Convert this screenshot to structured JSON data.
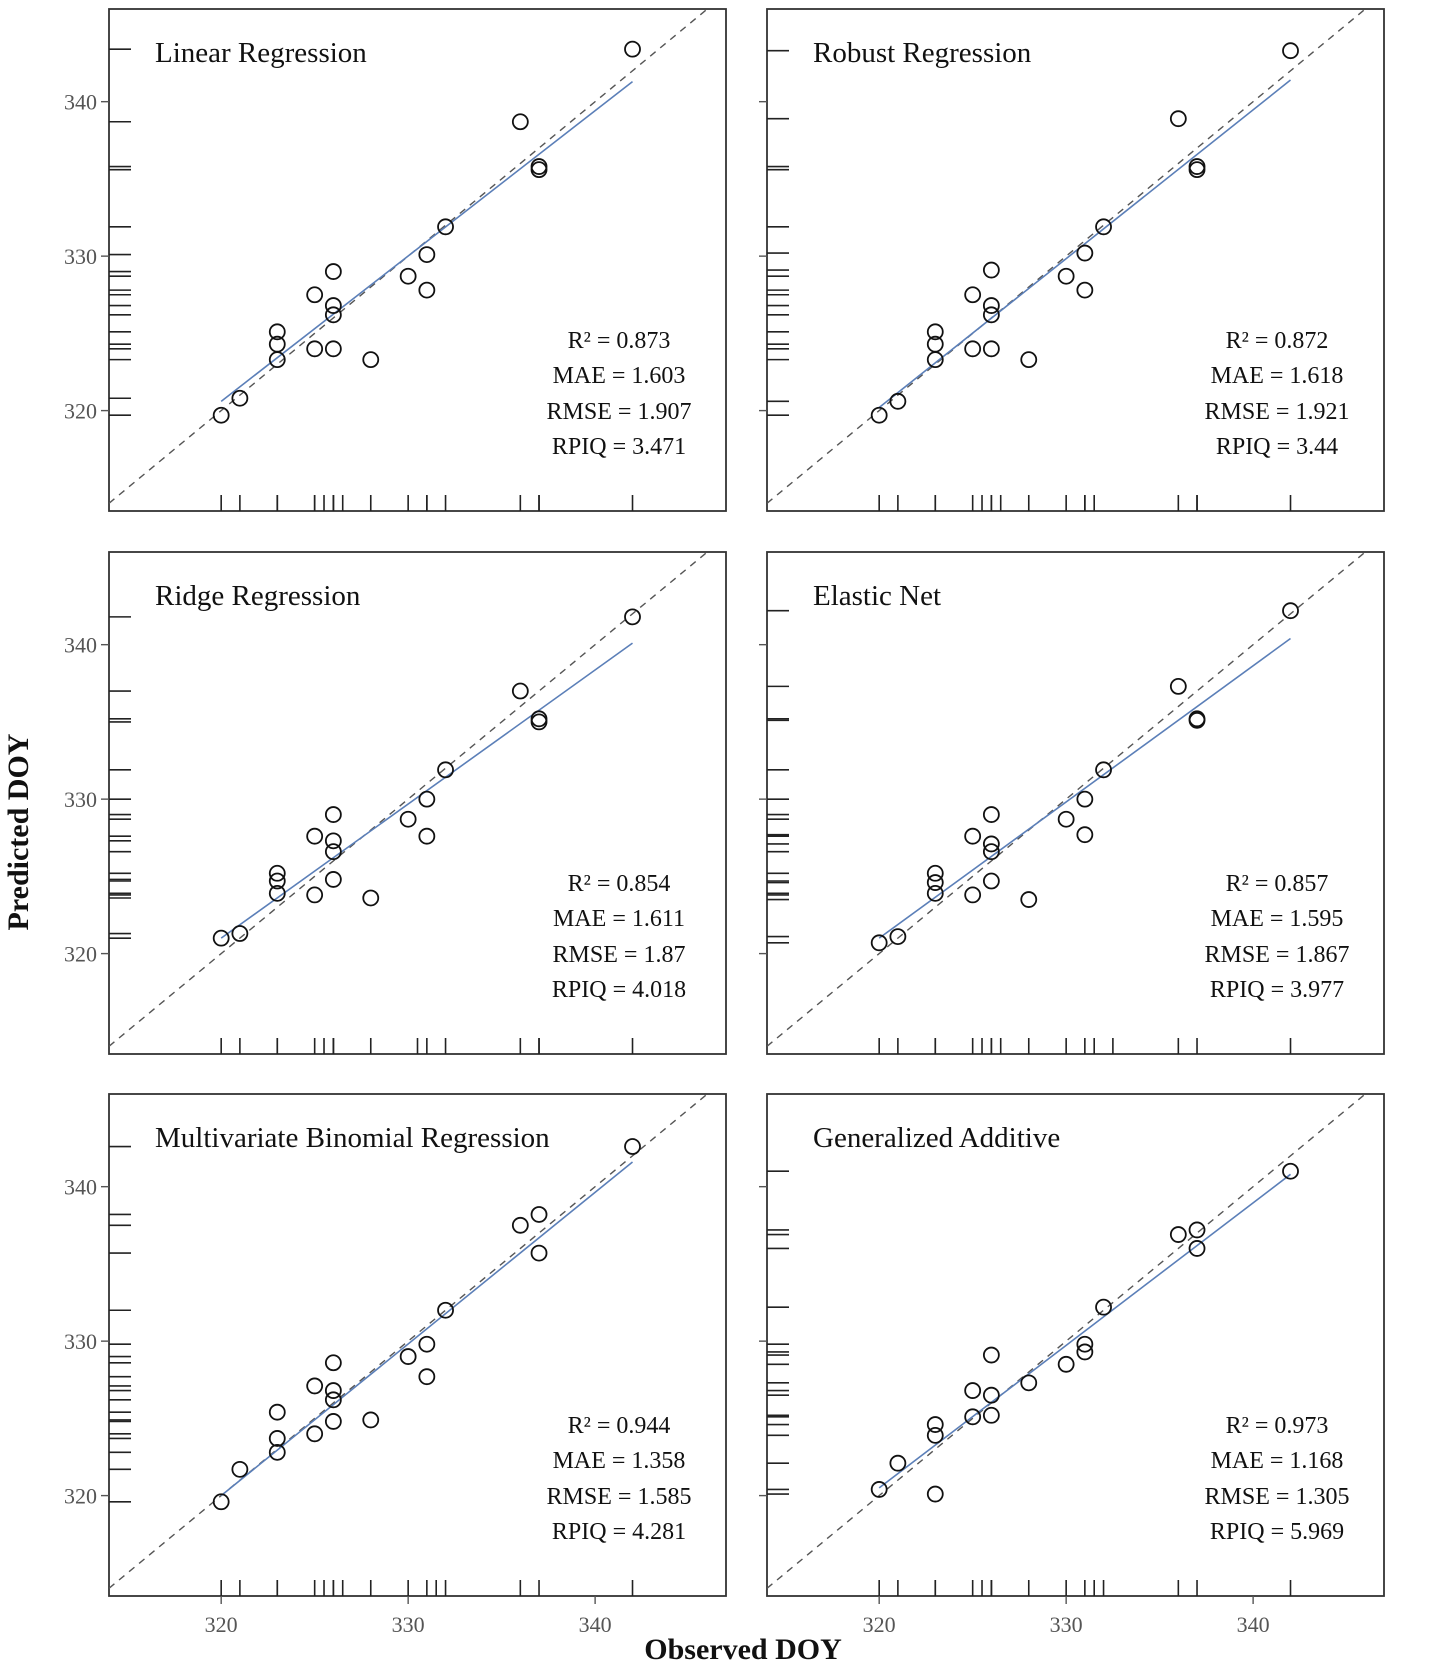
{
  "figure": {
    "xlabel": "Observed DOY",
    "ylabel": "Predicted DOY",
    "xlim": [
      314,
      347
    ],
    "ylim": [
      313.5,
      346
    ],
    "xticks": [
      320,
      330,
      340
    ],
    "yticks": [
      320,
      330,
      340
    ],
    "colors": {
      "fit_line": "#5b7fb8",
      "identity_line": "#555555",
      "points": "#111111",
      "frame": "#333333"
    }
  },
  "chart_data": [
    {
      "type": "scatter",
      "title": "Linear Regression",
      "stats": [
        "R² = 0.873",
        "MAE = 1.603",
        "RMSE = 1.907",
        "RPIQ = 3.471"
      ],
      "fit": [
        [
          320,
          320.6
        ],
        [
          342,
          341.3
        ]
      ],
      "points": [
        [
          320,
          319.7
        ],
        [
          321,
          320.8
        ],
        [
          323,
          325.1
        ],
        [
          323,
          324.3
        ],
        [
          323,
          323.3
        ],
        [
          325,
          327.5
        ],
        [
          325,
          324.0
        ],
        [
          326,
          329.0
        ],
        [
          326,
          326.8
        ],
        [
          326,
          326.2
        ],
        [
          326,
          324.0
        ],
        [
          328,
          323.3
        ],
        [
          330,
          328.7
        ],
        [
          331,
          330.1
        ],
        [
          331,
          327.8
        ],
        [
          332,
          331.9
        ],
        [
          336,
          338.7
        ],
        [
          337,
          335.8
        ],
        [
          337,
          335.6
        ],
        [
          342,
          343.4
        ]
      ],
      "rug_x": [
        320,
        321,
        323,
        323,
        323,
        325,
        325,
        325.5,
        326,
        326,
        326,
        326.5,
        328,
        330,
        331,
        331,
        332,
        336,
        337,
        337,
        342
      ],
      "rug_y": [
        319.7,
        320.8,
        323.3,
        324.0,
        324.3,
        325.1,
        326.2,
        326.8,
        327.5,
        327.8,
        328.7,
        329.0,
        330.1,
        331.9,
        335.6,
        335.8,
        338.7,
        343.4
      ]
    },
    {
      "type": "scatter",
      "title": "Robust Regression",
      "stats": [
        "R² = 0.872",
        "MAE = 1.618",
        "RMSE = 1.921",
        "RPIQ = 3.44"
      ],
      "fit": [
        [
          320,
          320.2
        ],
        [
          342,
          341.4
        ]
      ],
      "points": [
        [
          320,
          319.7
        ],
        [
          321,
          320.6
        ],
        [
          323,
          325.1
        ],
        [
          323,
          324.3
        ],
        [
          323,
          323.3
        ],
        [
          325,
          327.5
        ],
        [
          325,
          324.0
        ],
        [
          326,
          329.1
        ],
        [
          326,
          326.8
        ],
        [
          326,
          326.2
        ],
        [
          326,
          324.0
        ],
        [
          328,
          323.3
        ],
        [
          330,
          328.7
        ],
        [
          331,
          330.2
        ],
        [
          331,
          327.8
        ],
        [
          332,
          331.9
        ],
        [
          336,
          338.9
        ],
        [
          337,
          335.8
        ],
        [
          337,
          335.6
        ],
        [
          342,
          343.3
        ]
      ],
      "rug_x": [
        320,
        321,
        323,
        323,
        325,
        325.5,
        326,
        326,
        326.5,
        328,
        330,
        331,
        331,
        331.5,
        336,
        337,
        337,
        342
      ],
      "rug_y": [
        319.7,
        320.6,
        323.3,
        324.0,
        324.3,
        325.1,
        326.2,
        326.8,
        327.5,
        327.8,
        328.7,
        329.1,
        330.2,
        331.9,
        335.6,
        335.8,
        338.9,
        343.3
      ]
    },
    {
      "type": "scatter",
      "title": "Ridge Regression",
      "stats": [
        "R² = 0.854",
        "MAE = 1.611",
        "RMSE = 1.87",
        "RPIQ = 4.018"
      ],
      "fit": [
        [
          320,
          321.0
        ],
        [
          342,
          340.1
        ]
      ],
      "points": [
        [
          320,
          321.0
        ],
        [
          321,
          321.3
        ],
        [
          323,
          325.2
        ],
        [
          323,
          324.7
        ],
        [
          323,
          323.9
        ],
        [
          325,
          327.6
        ],
        [
          325,
          323.8
        ],
        [
          326,
          329.0
        ],
        [
          326,
          327.3
        ],
        [
          326,
          326.6
        ],
        [
          326,
          324.8
        ],
        [
          328,
          323.6
        ],
        [
          330,
          328.7
        ],
        [
          331,
          330.0
        ],
        [
          331,
          327.6
        ],
        [
          332,
          331.9
        ],
        [
          336,
          337.0
        ],
        [
          337,
          335.2
        ],
        [
          337,
          335.0
        ],
        [
          342,
          341.8
        ]
      ],
      "rug_x": [
        320,
        321,
        323,
        323,
        325,
        325.5,
        326,
        326,
        326,
        328,
        330.5,
        331,
        332,
        336,
        337,
        337,
        342
      ],
      "rug_y": [
        321.0,
        321.3,
        323.6,
        323.8,
        323.9,
        324.7,
        324.8,
        325.2,
        326.6,
        327.3,
        327.6,
        328.7,
        329.0,
        330.0,
        331.9,
        335.0,
        335.2,
        337.0,
        341.8
      ]
    },
    {
      "type": "scatter",
      "title": "Elastic Net",
      "stats": [
        "R² = 0.857",
        "MAE = 1.595",
        "RMSE = 1.867",
        "RPIQ = 3.977"
      ],
      "fit": [
        [
          320,
          321.0
        ],
        [
          342,
          340.4
        ]
      ],
      "points": [
        [
          320,
          320.7
        ],
        [
          321,
          321.1
        ],
        [
          323,
          325.2
        ],
        [
          323,
          324.6
        ],
        [
          323,
          323.9
        ],
        [
          325,
          327.6
        ],
        [
          325,
          323.8
        ],
        [
          326,
          329.0
        ],
        [
          326,
          327.1
        ],
        [
          326,
          326.6
        ],
        [
          326,
          324.7
        ],
        [
          328,
          323.5
        ],
        [
          330,
          328.7
        ],
        [
          331,
          330.0
        ],
        [
          331,
          327.7
        ],
        [
          332,
          331.9
        ],
        [
          336,
          337.3
        ],
        [
          337,
          335.2
        ],
        [
          337,
          335.1
        ],
        [
          342,
          342.2
        ]
      ],
      "rug_x": [
        320,
        321,
        323,
        323,
        325,
        325.5,
        326,
        326,
        326.5,
        328,
        330,
        331,
        331.5,
        332.5,
        336,
        337,
        342
      ],
      "rug_y": [
        320.7,
        321.1,
        323.5,
        323.8,
        323.9,
        324.6,
        324.7,
        325.2,
        326.6,
        327.1,
        327.6,
        327.7,
        328.7,
        329.0,
        330.0,
        331.9,
        335.1,
        335.2,
        337.3,
        342.2
      ]
    },
    {
      "type": "scatter",
      "title": "Multivariate Binomial Regression",
      "stats": [
        "R² = 0.944",
        "MAE = 1.358",
        "RMSE = 1.585",
        "RPIQ = 4.281"
      ],
      "fit": [
        [
          320,
          320.0
        ],
        [
          342,
          341.6
        ]
      ],
      "points": [
        [
          320,
          319.6
        ],
        [
          321,
          321.7
        ],
        [
          323,
          325.4
        ],
        [
          323,
          323.7
        ],
        [
          323,
          322.8
        ],
        [
          325,
          327.1
        ],
        [
          325,
          324.0
        ],
        [
          326,
          328.6
        ],
        [
          326,
          326.8
        ],
        [
          326,
          326.2
        ],
        [
          326,
          324.8
        ],
        [
          328,
          324.9
        ],
        [
          330,
          329.0
        ],
        [
          331,
          329.8
        ],
        [
          331,
          327.7
        ],
        [
          332,
          332.0
        ],
        [
          336,
          337.5
        ],
        [
          337,
          338.2
        ],
        [
          337,
          335.7
        ],
        [
          342,
          342.6
        ]
      ],
      "rug_x": [
        320,
        321,
        323,
        323,
        325,
        325.5,
        326,
        326,
        326.5,
        328,
        330,
        331,
        331.5,
        332,
        336,
        337,
        342
      ],
      "rug_y": [
        319.6,
        321.7,
        322.8,
        323.7,
        324.0,
        324.8,
        324.9,
        325.4,
        326.2,
        326.8,
        327.1,
        327.7,
        328.6,
        329.0,
        329.8,
        332.0,
        335.7,
        337.5,
        338.2,
        342.6
      ]
    },
    {
      "type": "scatter",
      "title": "Generalized Additive",
      "stats": [
        "R² = 0.973",
        "MAE = 1.168",
        "RMSE = 1.305",
        "RPIQ = 5.969"
      ],
      "fit": [
        [
          320,
          320.5
        ],
        [
          342,
          340.8
        ]
      ],
      "points": [
        [
          320,
          320.4
        ],
        [
          321,
          322.1
        ],
        [
          323,
          324.6
        ],
        [
          323,
          323.9
        ],
        [
          323,
          320.1
        ],
        [
          325,
          326.8
        ],
        [
          325,
          325.1
        ],
        [
          326,
          329.1
        ],
        [
          326,
          326.5
        ],
        [
          326,
          325.2
        ],
        [
          328,
          327.3
        ],
        [
          330,
          328.5
        ],
        [
          331,
          329.8
        ],
        [
          331,
          329.3
        ],
        [
          332,
          332.2
        ],
        [
          336,
          336.9
        ],
        [
          337,
          337.2
        ],
        [
          337,
          336.0
        ],
        [
          342,
          341.0
        ]
      ],
      "rug_x": [
        320,
        321,
        323,
        323,
        325,
        325.5,
        326,
        326,
        326,
        328,
        330,
        331,
        331.5,
        332,
        336,
        337,
        342
      ],
      "rug_y": [
        320.1,
        320.4,
        322.1,
        323.9,
        324.6,
        325.1,
        325.2,
        326.5,
        326.8,
        327.3,
        328.5,
        329.1,
        329.3,
        329.8,
        332.2,
        336.0,
        336.9,
        337.2,
        341.0
      ]
    }
  ]
}
